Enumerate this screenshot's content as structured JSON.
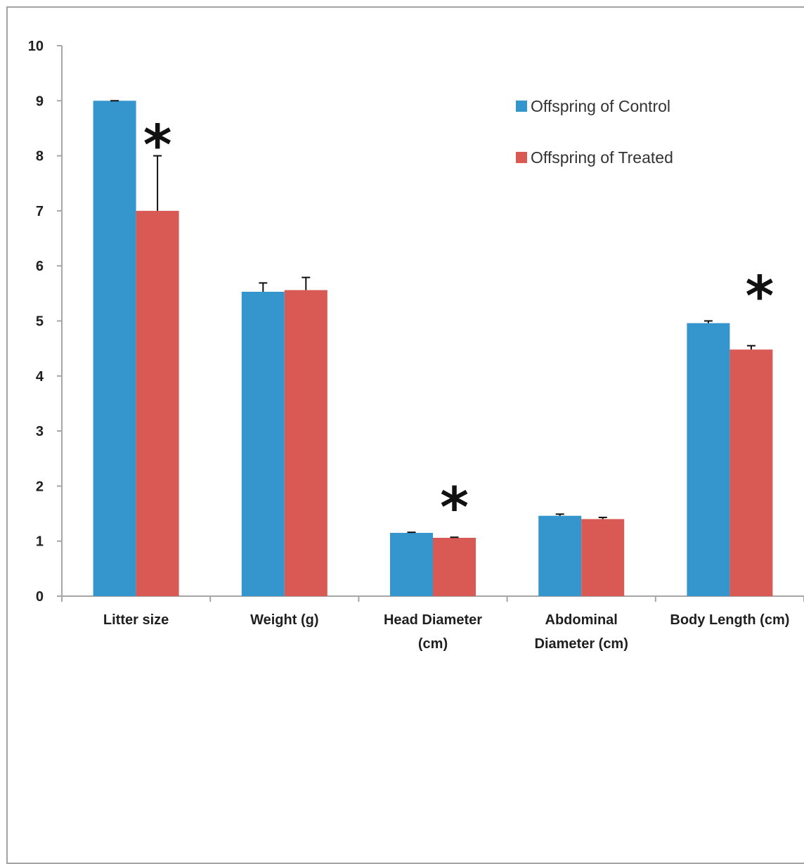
{
  "chart_data": {
    "type": "bar",
    "title": "",
    "xlabel": "",
    "ylabel": "",
    "ylim": [
      0,
      10
    ],
    "yticks": [
      0,
      1,
      2,
      3,
      4,
      5,
      6,
      7,
      8,
      9,
      10
    ],
    "categories": [
      [
        "Litter size"
      ],
      [
        "Weight (g)"
      ],
      [
        "Head Diameter",
        "(cm)"
      ],
      [
        "Abdominal",
        "Diameter (cm)"
      ],
      [
        "Body Length (cm)"
      ]
    ],
    "series": [
      {
        "name": "Offspring of Control",
        "color": "#3496cd",
        "values": [
          9.0,
          5.53,
          1.15,
          1.46,
          4.96
        ],
        "errors": [
          0.0,
          0.16,
          0.01,
          0.03,
          0.04
        ]
      },
      {
        "name": "Offspring of Treated",
        "color": "#d95a55",
        "values": [
          7.0,
          5.56,
          1.06,
          1.4,
          4.48
        ],
        "errors": [
          1.0,
          0.23,
          0.01,
          0.03,
          0.07
        ]
      }
    ],
    "significance_marker": "*",
    "significant_categories": [
      0,
      2,
      4
    ],
    "grid": false,
    "legend_position": "top-right"
  }
}
